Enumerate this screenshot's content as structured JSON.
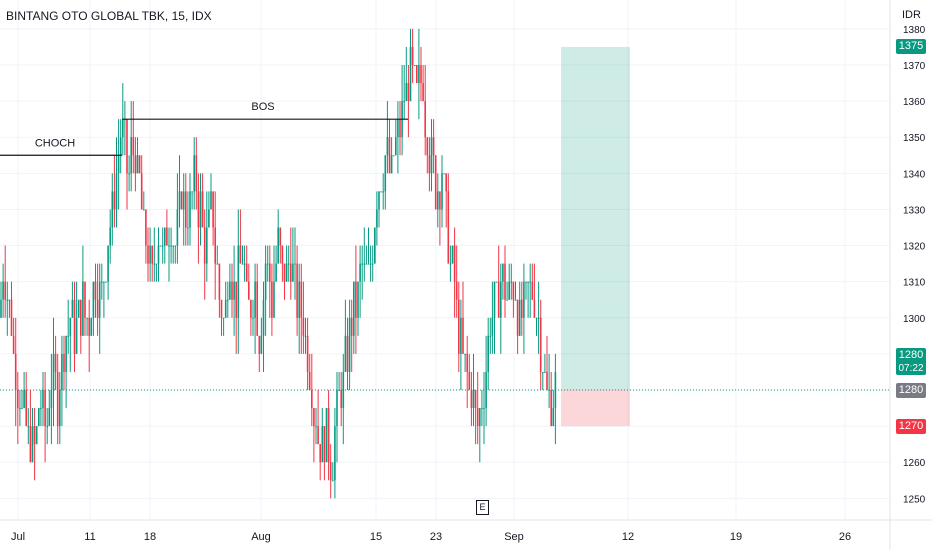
{
  "header": {
    "title": "BINTANG OTO GLOBAL TBK, 15, IDX",
    "currency": "IDR"
  },
  "colors": {
    "up": "#089981",
    "down": "#f23645",
    "grid": "#f0f3fa",
    "target_zone": "rgba(8,153,129,0.2)",
    "stop_zone": "rgba(242,54,69,0.2)",
    "last_price_line": "#089981",
    "current_tag": "#787b86"
  },
  "price_tags": {
    "target": "1375",
    "last": "1280",
    "countdown": "07:22",
    "current": "1280",
    "stop": "1270"
  },
  "annotations": {
    "choch": "CHOCH",
    "bos": "BOS",
    "event_marker": "E"
  },
  "chart_data": {
    "type": "candlestick",
    "title": "BINTANG OTO GLOBAL TBK, 15, IDX",
    "ylabel": "IDR",
    "ylim": [
      1244,
      1388
    ],
    "y_ticks": [
      1250,
      1260,
      1270,
      1280,
      1290,
      1300,
      1310,
      1320,
      1330,
      1340,
      1350,
      1360,
      1370,
      1380
    ],
    "x_ticks": [
      "Jul",
      "11",
      "18",
      "Aug",
      "15",
      "23",
      "Sep",
      "12",
      "19",
      "26"
    ],
    "last_price": 1280,
    "levels": [
      {
        "label": "CHOCH",
        "price": 1345
      },
      {
        "label": "BOS",
        "price": 1355
      }
    ],
    "long_position": {
      "entry": 1280,
      "target": 1375,
      "stop": 1270
    },
    "price_path": [
      [
        0,
        1300
      ],
      [
        4,
        1315
      ],
      [
        10,
        1300
      ],
      [
        16,
        1285
      ],
      [
        22,
        1275
      ],
      [
        28,
        1268
      ],
      [
        34,
        1262
      ],
      [
        40,
        1278
      ],
      [
        46,
        1270
      ],
      [
        52,
        1285
      ],
      [
        58,
        1278
      ],
      [
        64,
        1290
      ],
      [
        70,
        1300
      ],
      [
        76,
        1295
      ],
      [
        82,
        1305
      ],
      [
        88,
        1298
      ],
      [
        94,
        1310
      ],
      [
        100,
        1305
      ],
      [
        106,
        1318
      ],
      [
        112,
        1330
      ],
      [
        118,
        1345
      ],
      [
        122,
        1355
      ],
      [
        128,
        1340
      ],
      [
        134,
        1348
      ],
      [
        140,
        1335
      ],
      [
        146,
        1320
      ],
      [
        152,
        1310
      ],
      [
        158,
        1325
      ],
      [
        164,
        1315
      ],
      [
        170,
        1330
      ],
      [
        176,
        1320
      ],
      [
        182,
        1335
      ],
      [
        188,
        1328
      ],
      [
        194,
        1340
      ],
      [
        200,
        1330
      ],
      [
        206,
        1320
      ],
      [
        212,
        1330
      ],
      [
        218,
        1310
      ],
      [
        224,
        1300
      ],
      [
        230,
        1315
      ],
      [
        236,
        1305
      ],
      [
        242,
        1320
      ],
      [
        248,
        1300
      ],
      [
        254,
        1310
      ],
      [
        260,
        1295
      ],
      [
        266,
        1315
      ],
      [
        272,
        1305
      ],
      [
        278,
        1320
      ],
      [
        284,
        1310
      ],
      [
        290,
        1318
      ],
      [
        296,
        1305
      ],
      [
        302,
        1300
      ],
      [
        308,
        1290
      ],
      [
        314,
        1275
      ],
      [
        320,
        1265
      ],
      [
        326,
        1270
      ],
      [
        332,
        1260
      ],
      [
        338,
        1275
      ],
      [
        344,
        1285
      ],
      [
        350,
        1295
      ],
      [
        356,
        1305
      ],
      [
        362,
        1315
      ],
      [
        368,
        1310
      ],
      [
        374,
        1325
      ],
      [
        380,
        1340
      ],
      [
        386,
        1345
      ],
      [
        392,
        1340
      ],
      [
        398,
        1350
      ],
      [
        404,
        1360
      ],
      [
        410,
        1370
      ],
      [
        416,
        1362
      ],
      [
        422,
        1368
      ],
      [
        426,
        1355
      ],
      [
        430,
        1345
      ],
      [
        436,
        1335
      ],
      [
        442,
        1340
      ],
      [
        448,
        1320
      ],
      [
        454,
        1310
      ],
      [
        460,
        1295
      ],
      [
        466,
        1285
      ],
      [
        472,
        1278
      ],
      [
        478,
        1272
      ],
      [
        484,
        1280
      ],
      [
        490,
        1300
      ],
      [
        496,
        1305
      ],
      [
        502,
        1310
      ],
      [
        508,
        1305
      ],
      [
        514,
        1310
      ],
      [
        520,
        1300
      ],
      [
        526,
        1305
      ],
      [
        532,
        1310
      ],
      [
        538,
        1300
      ],
      [
        544,
        1285
      ],
      [
        550,
        1275
      ],
      [
        556,
        1280
      ]
    ]
  }
}
